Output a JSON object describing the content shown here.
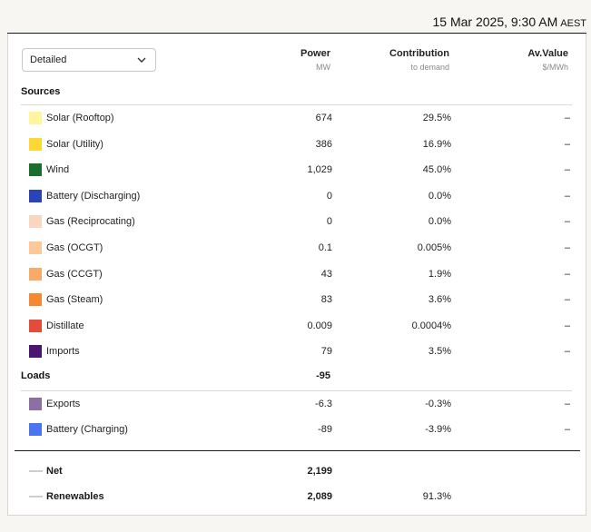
{
  "header": {
    "timestamp": "15 Mar 2025, 9:30 AM",
    "timezone": "AEST"
  },
  "controls": {
    "view_select": "Detailed"
  },
  "columns": {
    "power": {
      "title": "Power",
      "unit": "MW"
    },
    "contribution": {
      "title": "Contribution",
      "unit": "to demand"
    },
    "avvalue": {
      "title": "Av.Value",
      "unit": "$/MWh"
    }
  },
  "sources": {
    "label": "Sources",
    "rows": [
      {
        "name": "Solar (Rooftop)",
        "power": "674",
        "contribution": "29.5%",
        "value": "–",
        "color": "#fff59d"
      },
      {
        "name": "Solar (Utility)",
        "power": "386",
        "contribution": "16.9%",
        "value": "–",
        "color": "#fdd835"
      },
      {
        "name": "Wind",
        "power": "1,029",
        "contribution": "45.0%",
        "value": "–",
        "color": "#1b6e2c"
      },
      {
        "name": "Battery (Discharging)",
        "power": "0",
        "contribution": "0.0%",
        "value": "–",
        "color": "#2a43b8"
      },
      {
        "name": "Gas (Reciprocating)",
        "power": "0",
        "contribution": "0.0%",
        "value": "–",
        "color": "#f9d6bd"
      },
      {
        "name": "Gas (OCGT)",
        "power": "0.1",
        "contribution": "0.005%",
        "value": "–",
        "color": "#fcc89a"
      },
      {
        "name": "Gas (CCGT)",
        "power": "43",
        "contribution": "1.9%",
        "value": "–",
        "color": "#f9aa66"
      },
      {
        "name": "Gas (Steam)",
        "power": "83",
        "contribution": "3.6%",
        "value": "–",
        "color": "#f58831"
      },
      {
        "name": "Distillate",
        "power": "0.009",
        "contribution": "0.0004%",
        "value": "–",
        "color": "#e14d3a"
      },
      {
        "name": "Imports",
        "power": "79",
        "contribution": "3.5%",
        "value": "–",
        "color": "#4a1670"
      }
    ]
  },
  "loads": {
    "label": "Loads",
    "total": "-95",
    "rows": [
      {
        "name": "Exports",
        "power": "-6.3",
        "contribution": "-0.3%",
        "value": "–",
        "color": "#8c6fa3"
      },
      {
        "name": "Battery (Charging)",
        "power": "-89",
        "contribution": "-3.9%",
        "value": "–",
        "color": "#4a74f0"
      }
    ]
  },
  "summary": {
    "net": {
      "name": "Net",
      "power": "2,199",
      "contribution": ""
    },
    "renewables": {
      "name": "Renewables",
      "power": "2,089",
      "contribution": "91.3%"
    }
  }
}
